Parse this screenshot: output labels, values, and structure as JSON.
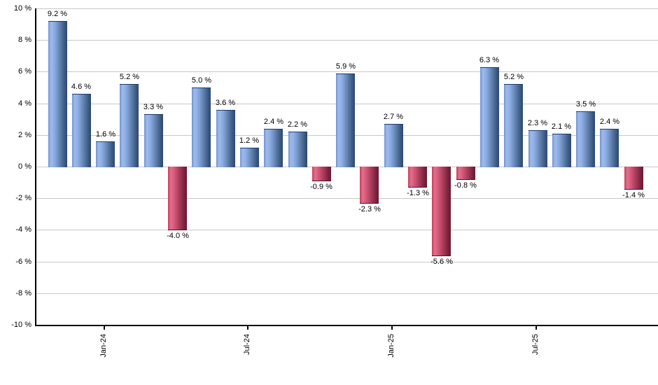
{
  "chart_data": {
    "type": "bar",
    "title": "",
    "unit": "%",
    "values": [
      9.2,
      4.6,
      1.6,
      5.2,
      3.3,
      -4.0,
      5.0,
      3.6,
      1.2,
      2.4,
      2.2,
      -0.9,
      5.9,
      -2.3,
      2.7,
      -1.3,
      -5.6,
      -0.8,
      6.3,
      5.2,
      2.3,
      2.1,
      3.5,
      2.4,
      -1.4
    ],
    "point_labels": [
      "9.2 %",
      "4.6 %",
      "1.6 %",
      "5.2 %",
      "3.3 %",
      "-4.0 %",
      "5.0 %",
      "3.6 %",
      "1.2 %",
      "2.4 %",
      "2.2 %",
      "-0.9 %",
      "5.9 %",
      "-2.3 %",
      "2.7 %",
      "-1.3 %",
      "-5.6 %",
      "-0.8 %",
      "6.3 %",
      "5.2 %",
      "2.3 %",
      "2.1 %",
      "3.5 %",
      "2.4 %",
      "-1.4 %"
    ],
    "ylim": [
      -10,
      10
    ],
    "y_ticks": [
      {
        "value": 10,
        "label": "10 %"
      },
      {
        "value": 8,
        "label": "8 %"
      },
      {
        "value": 6,
        "label": "6 %"
      },
      {
        "value": 4,
        "label": "4 %"
      },
      {
        "value": 2,
        "label": "2 %"
      },
      {
        "value": 0,
        "label": "0 %"
      },
      {
        "value": -2,
        "label": "-2 %"
      },
      {
        "value": -4,
        "label": "-4 %"
      },
      {
        "value": -6,
        "label": "-6 %"
      },
      {
        "value": -8,
        "label": "-8 %"
      },
      {
        "value": -10,
        "label": "-10 %"
      }
    ],
    "x_ticks": [
      {
        "index": 2,
        "label": "Jan-24"
      },
      {
        "index": 8,
        "label": "Jul-24"
      },
      {
        "index": 14,
        "label": "Jan-25"
      },
      {
        "index": 20,
        "label": "Jul-25"
      }
    ],
    "grid": true,
    "legend": "none",
    "colors": {
      "background": "#ffffff",
      "gridline": "#c8c8c8",
      "axis": "#000000",
      "label_text": "#000000",
      "positive_gradient": [
        {
          "offset": "0%",
          "color": "#6e91cc"
        },
        {
          "offset": "13%",
          "color": "#9cbaf0"
        },
        {
          "offset": "30%",
          "color": "#8fafe3"
        },
        {
          "offset": "50%",
          "color": "#7292c6"
        },
        {
          "offset": "70%",
          "color": "#53739e"
        },
        {
          "offset": "88%",
          "color": "#3a577f"
        },
        {
          "offset": "100%",
          "color": "#2e4973"
        }
      ],
      "negative_gradient": [
        {
          "offset": "0%",
          "color": "#c83a5c"
        },
        {
          "offset": "15%",
          "color": "#e3708d"
        },
        {
          "offset": "32%",
          "color": "#d45a7a"
        },
        {
          "offset": "52%",
          "color": "#b74363"
        },
        {
          "offset": "72%",
          "color": "#92304d"
        },
        {
          "offset": "90%",
          "color": "#741f39"
        },
        {
          "offset": "100%",
          "color": "#6a1c33"
        }
      ],
      "positive_cap": "#1f3c69",
      "negative_cap": "#55122a"
    }
  }
}
